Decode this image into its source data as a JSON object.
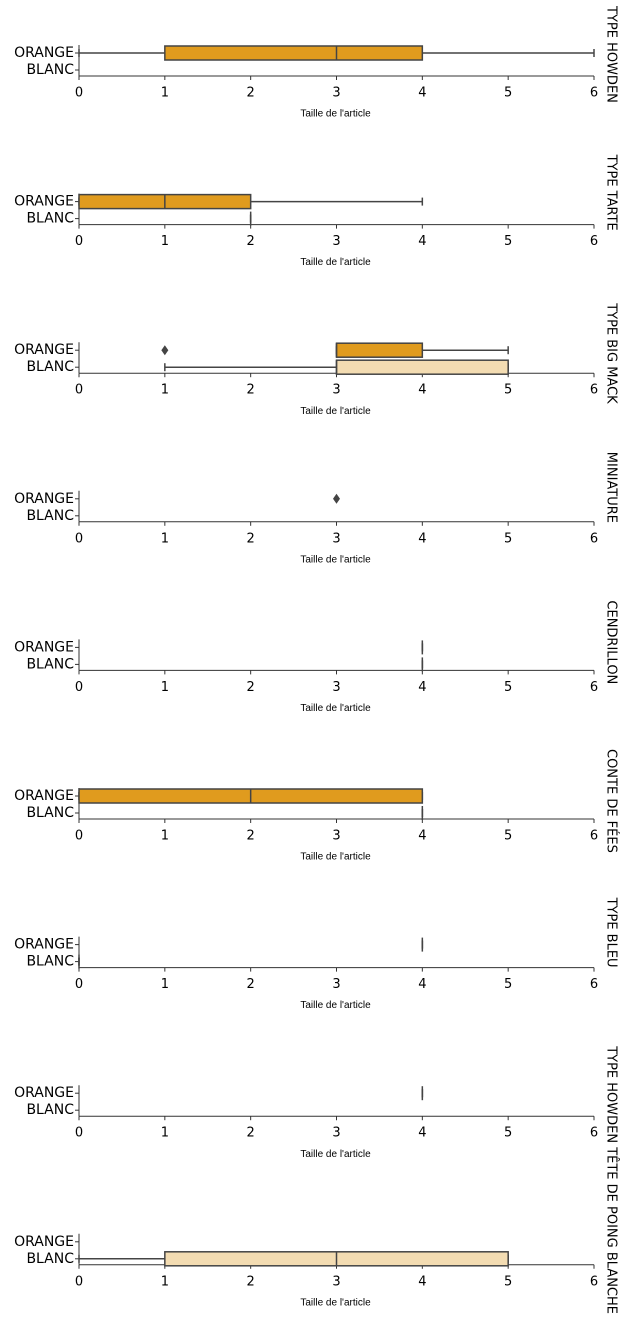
{
  "chart_data": [
    {
      "type": "box",
      "title": "TYPE HOWDEN",
      "xlabel": "Taille de l'article",
      "xlim": [
        0,
        6
      ],
      "xticks": [
        0,
        1,
        2,
        3,
        4,
        5,
        6
      ],
      "series": [
        {
          "name": "ORANGE",
          "color": "#e09b1e",
          "stats": {
            "min": 0,
            "q1": 1,
            "median": 3,
            "q3": 4,
            "max": 6
          },
          "outliers": []
        },
        {
          "name": "BLANC",
          "color": "#f3dcb2",
          "stats": null,
          "outliers": []
        }
      ]
    },
    {
      "type": "box",
      "title": "TYPE TARTE",
      "xlabel": "Taille de l'article",
      "xlim": [
        0,
        6
      ],
      "xticks": [
        0,
        1,
        2,
        3,
        4,
        5,
        6
      ],
      "series": [
        {
          "name": "ORANGE",
          "color": "#e09b1e",
          "stats": {
            "min": 0,
            "q1": 0,
            "median": 1,
            "q3": 2,
            "max": 4
          },
          "outliers": []
        },
        {
          "name": "BLANC",
          "color": "#f3dcb2",
          "stats": {
            "min": 2,
            "q1": 2,
            "median": 2,
            "q3": 2,
            "max": 2
          },
          "outliers": []
        }
      ]
    },
    {
      "type": "box",
      "title": "TYPE BIG MACK",
      "xlabel": "Taille de l'article",
      "xlim": [
        0,
        6
      ],
      "xticks": [
        0,
        1,
        2,
        3,
        4,
        5,
        6
      ],
      "series": [
        {
          "name": "ORANGE",
          "color": "#e09b1e",
          "stats": {
            "min": 3,
            "q1": 3,
            "median": 3,
            "q3": 4,
            "max": 5
          },
          "outliers": [
            1
          ]
        },
        {
          "name": "BLANC",
          "color": "#f3dcb2",
          "stats": {
            "min": 1,
            "q1": 3,
            "median": 3,
            "q3": 5,
            "max": 5
          },
          "outliers": []
        }
      ]
    },
    {
      "type": "box",
      "title": "MINIATURE",
      "xlabel": "Taille de l'article",
      "xlim": [
        0,
        6
      ],
      "xticks": [
        0,
        1,
        2,
        3,
        4,
        5,
        6
      ],
      "series": [
        {
          "name": "ORANGE",
          "color": "#e09b1e",
          "stats": null,
          "outliers": [
            3
          ]
        },
        {
          "name": "BLANC",
          "color": "#f3dcb2",
          "stats": null,
          "outliers": []
        }
      ]
    },
    {
      "type": "box",
      "title": "CENDRILLON",
      "xlabel": "Taille de l'article",
      "xlim": [
        0,
        6
      ],
      "xticks": [
        0,
        1,
        2,
        3,
        4,
        5,
        6
      ],
      "series": [
        {
          "name": "ORANGE",
          "color": "#e09b1e",
          "stats": {
            "min": 4,
            "q1": 4,
            "median": 4,
            "q3": 4,
            "max": 4
          },
          "outliers": []
        },
        {
          "name": "BLANC",
          "color": "#f3dcb2",
          "stats": {
            "min": 4,
            "q1": 4,
            "median": 4,
            "q3": 4,
            "max": 4
          },
          "outliers": []
        }
      ]
    },
    {
      "type": "box",
      "title": "CONTE DE FÉES",
      "xlabel": "Taille de l'article",
      "xlim": [
        0,
        6
      ],
      "xticks": [
        0,
        1,
        2,
        3,
        4,
        5,
        6
      ],
      "series": [
        {
          "name": "ORANGE",
          "color": "#e09b1e",
          "stats": {
            "min": 0,
            "q1": 0,
            "median": 2,
            "q3": 4,
            "max": 4
          },
          "outliers": []
        },
        {
          "name": "BLANC",
          "color": "#f3dcb2",
          "stats": {
            "min": 4,
            "q1": 4,
            "median": 4,
            "q3": 4,
            "max": 4
          },
          "outliers": []
        }
      ]
    },
    {
      "type": "box",
      "title": "TYPE BLEU",
      "xlabel": "Taille de l'article",
      "xlim": [
        0,
        6
      ],
      "xticks": [
        0,
        1,
        2,
        3,
        4,
        5,
        6
      ],
      "series": [
        {
          "name": "ORANGE",
          "color": "#e09b1e",
          "stats": {
            "min": 4,
            "q1": 4,
            "median": 4,
            "q3": 4,
            "max": 4
          },
          "outliers": []
        },
        {
          "name": "BLANC",
          "color": "#f3dcb2",
          "stats": {
            "min": 0,
            "q1": 0,
            "median": 0,
            "q3": 0,
            "max": 0
          },
          "outliers": []
        }
      ]
    },
    {
      "type": "box",
      "title": "TYPE HOWDEN TÊTE DE POING BLANCHE",
      "xlabel": "Taille de l'article",
      "xlim": [
        0,
        6
      ],
      "xticks": [
        0,
        1,
        2,
        3,
        4,
        5,
        6
      ],
      "series": [
        {
          "name": "ORANGE",
          "color": "#e09b1e",
          "stats": {
            "min": 4,
            "q1": 4,
            "median": 4,
            "q3": 4,
            "max": 4
          },
          "outliers": []
        },
        {
          "name": "BLANC",
          "color": "#f3dcb2",
          "stats": null,
          "outliers": []
        }
      ]
    },
    {
      "type": "box",
      "xlabel": "Taille de l'article",
      "xlim": [
        0,
        6
      ],
      "xticks": [
        0,
        1,
        2,
        3,
        4,
        5,
        6
      ],
      "series": [
        {
          "name": "ORANGE",
          "color": "#e09b1e",
          "stats": null,
          "outliers": []
        },
        {
          "name": "BLANC",
          "color": "#f3dcb2",
          "stats": {
            "min": 0,
            "q1": 1,
            "median": 3,
            "q3": 5,
            "max": 5
          },
          "outliers": []
        }
      ]
    }
  ]
}
